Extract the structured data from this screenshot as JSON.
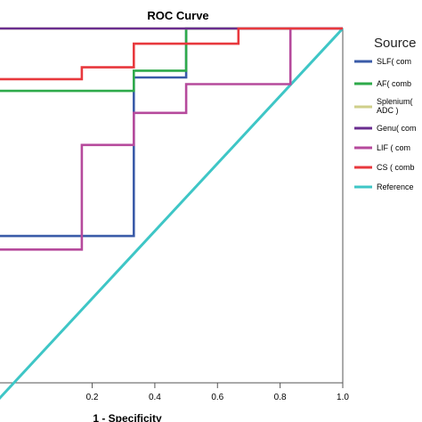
{
  "chart_data": {
    "type": "line",
    "title": "ROC Curve",
    "xlabel": "1 - Specificity",
    "ylabel": "",
    "xlim": [
      -0.1,
      1.0
    ],
    "ylim": [
      -0.05,
      1.0
    ],
    "x_ticks": [
      "0.2",
      "0.4",
      "0.6",
      "0.8",
      "1.0"
    ],
    "grid": false,
    "legend": {
      "title": "Source",
      "placement": "right",
      "entries": [
        "SLF( com",
        "AF( comb",
        "Splenium(",
        "ADC )",
        "Genu( com",
        "LIF ( com",
        "CS ( comb",
        "Reference"
      ]
    },
    "series": [
      {
        "name": "SLF( com",
        "color": "#3a5ba8",
        "x": [
          -0.1,
          0.333,
          0.333,
          0.5,
          0.5,
          1.0
        ],
        "y": [
          0.385,
          0.385,
          0.855,
          0.855,
          1.0,
          1.0
        ]
      },
      {
        "name": "AF( comb",
        "color": "#2eaa4a",
        "x": [
          -0.1,
          0.333,
          0.333,
          0.5,
          0.5,
          1.0
        ],
        "y": [
          0.815,
          0.815,
          0.875,
          0.875,
          1.0,
          1.0
        ]
      },
      {
        "name": "Splenium( ADC )",
        "color": "#cfcf8a",
        "x": [
          -0.1,
          1.0
        ],
        "y": [
          1.0,
          1.0
        ]
      },
      {
        "name": "Genu( com",
        "color": "#6a2d8f",
        "x": [
          -0.1,
          1.0
        ],
        "y": [
          1.0,
          1.0
        ]
      },
      {
        "name": "LIF ( com",
        "color": "#b64a9c",
        "x": [
          -0.1,
          0.167,
          0.167,
          0.333,
          0.333,
          0.5,
          0.5,
          0.833,
          0.833,
          1.0
        ],
        "y": [
          0.345,
          0.345,
          0.655,
          0.655,
          0.75,
          0.75,
          0.835,
          0.835,
          1.0,
          1.0
        ]
      },
      {
        "name": "CS ( comb",
        "color": "#e8383d",
        "x": [
          -0.1,
          0.0,
          0.0,
          0.167,
          0.167,
          0.333,
          0.333,
          0.667,
          0.667,
          1.0
        ],
        "y": [
          0.85,
          0.85,
          0.85,
          0.85,
          0.885,
          0.885,
          0.955,
          0.955,
          1.0,
          1.0
        ]
      },
      {
        "name": "Reference",
        "color": "#3ec6c6",
        "x": [
          -0.1,
          1.0
        ],
        "y": [
          -0.1,
          1.0
        ]
      }
    ]
  }
}
